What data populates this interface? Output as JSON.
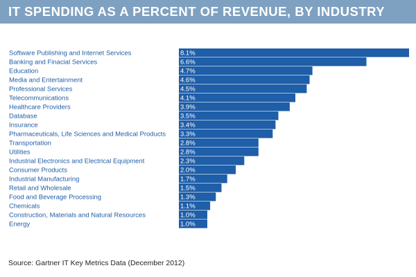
{
  "colors": {
    "title_bar": "#7fa1c1",
    "bar": "#1f5ea8",
    "category_text": "#1f5ea8"
  },
  "source": "Source: Gartner IT Key Metrics Data (December 2012)",
  "chart_data": {
    "type": "bar",
    "orientation": "horizontal",
    "title": "IT SPENDING AS A PERCENT OF REVENUE, BY INDUSTRY",
    "xlabel": "",
    "ylabel": "",
    "xlim": [
      0,
      8.1
    ],
    "grid": false,
    "categories": [
      "Software Publishing and Internet Services",
      "Banking and Finacial Services",
      "Education",
      "Media and Entertainment",
      "Professional Services",
      "Telecommunications",
      "Healthcare Providers",
      "Database",
      "Insurance",
      "Pharmaceuticals, Life Sciences and Medical Products",
      "Transportation",
      "Utilities",
      "Industrial Electronics and Electrical Equipment",
      "Consumer Products",
      "Industrial Manufacturing",
      "Retail and Wholesale",
      "Food and Beverage Processing",
      "Chemicals",
      "Construction, Materials and Natural Resources",
      "Energy"
    ],
    "values": [
      8.1,
      6.6,
      4.7,
      4.6,
      4.5,
      4.1,
      3.9,
      3.5,
      3.4,
      3.3,
      2.8,
      2.8,
      2.3,
      2.0,
      1.7,
      1.5,
      1.3,
      1.1,
      1.0,
      1.0
    ],
    "value_labels": [
      "8.1%",
      "6.6%",
      "4.7%",
      "4.6%",
      "4.5%",
      "4.1%",
      "3.9%",
      "3.5%",
      "3.4%",
      "3.3%",
      "2.8%",
      "2.8%",
      "2.3%",
      "2.0%",
      "1.7%",
      "1.5%",
      "1.3%",
      "1.1%",
      "1.0%",
      "1.0%"
    ]
  }
}
